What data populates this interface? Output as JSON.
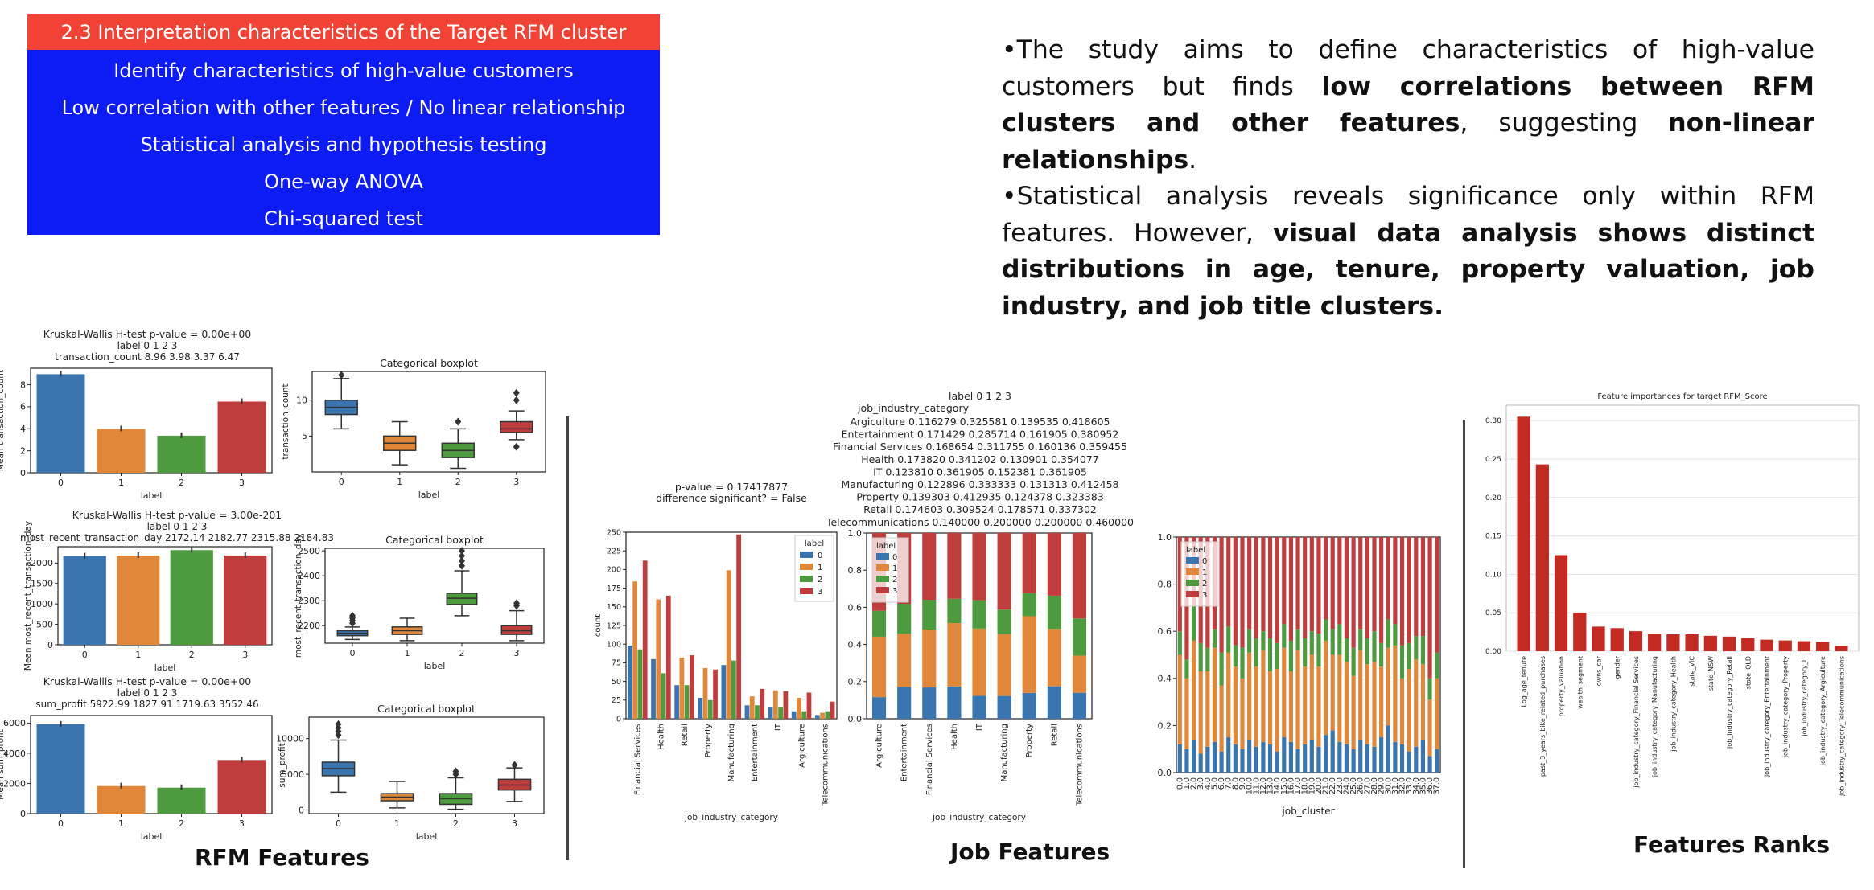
{
  "menu": {
    "items": [
      {
        "label": "2.3 Interpretation characteristics of the Target RFM cluster",
        "active": true
      },
      {
        "label": "Identify characteristics of high-value customers",
        "active": false
      },
      {
        "label": "Low correlation with other features / No linear relationship",
        "active": false
      },
      {
        "label": "Statistical analysis and hypothesis testing",
        "active": false
      },
      {
        "label": "One-way ANOVA",
        "active": false
      },
      {
        "label": "Chi-squared test",
        "active": false
      }
    ]
  },
  "summary": {
    "p1_a": "•The study aims to define characteristics of high-value customers but finds ",
    "p1_b": "low correlations between RFM clusters and other features",
    "p1_c": ", suggesting ",
    "p1_d": "non-linear relationships",
    "p1_e": ".",
    "p2_a": "•Statistical analysis reveals significance only within RFM features. However, ",
    "p2_b": "visual data analysis shows distinct distributions in age, tenure, property valuation, job industry, and job title clusters."
  },
  "captions": {
    "rfm": "RFM Features",
    "job": "Job Features",
    "ranks": "Features Ranks"
  },
  "colors": {
    "blue": "#3a75af",
    "orange": "#e1873a",
    "green": "#4e9a3e",
    "red": "#c03d3e",
    "feature_bar": "#c32a22",
    "menu_blue": "#0d1cf5",
    "menu_red": "#f24236"
  },
  "chart_data": [
    {
      "id": "tc",
      "type": "bar",
      "test_title": "Kruskal-Wallis H-test p-value = 0.00e+00",
      "table_header": "label           0      1      2      3",
      "table_row": "transaction_count  8.96  3.98  3.37  6.47",
      "categories": [
        "0",
        "1",
        "2",
        "3"
      ],
      "values": [
        8.96,
        3.98,
        3.37,
        6.47
      ],
      "xlabel": "label",
      "ylabel": "Mean transaction_count",
      "ylim": [
        0,
        9.5
      ],
      "yticks": [
        "0",
        "2",
        "4",
        "6",
        "8"
      ]
    },
    {
      "id": "tc_box",
      "type": "box",
      "title": "Categorical boxplot",
      "categories": [
        "0",
        "1",
        "2",
        "3"
      ],
      "xlabel": "label",
      "ylabel": "transaction_count",
      "ylim": [
        0,
        14
      ],
      "yticks": [
        "5",
        "10"
      ],
      "boxes": [
        {
          "q1": 8,
          "med": 9,
          "q3": 10,
          "lo": 6,
          "hi": 13,
          "outliers": [
            13.5
          ]
        },
        {
          "q1": 3,
          "med": 4,
          "q3": 5,
          "lo": 1,
          "hi": 7,
          "outliers": []
        },
        {
          "q1": 2,
          "med": 3,
          "q3": 4,
          "lo": 0.5,
          "hi": 6,
          "outliers": [
            7
          ]
        },
        {
          "q1": 5.5,
          "med": 6,
          "q3": 7,
          "lo": 4.5,
          "hi": 8.5,
          "outliers": [
            10,
            11,
            3.5
          ]
        }
      ]
    },
    {
      "id": "mrt",
      "type": "bar",
      "test_title": "Kruskal-Wallis H-test p-value = 3.00e-201",
      "table_header": "label                      0        1        2        3",
      "table_row": "most_recent_transaction_day  2172.14  2182.77  2315.88  2184.83",
      "categories": [
        "0",
        "1",
        "2",
        "3"
      ],
      "values": [
        2172.14,
        2182.77,
        2315.88,
        2184.83
      ],
      "xlabel": "label",
      "ylabel": "Mean most_recent_transaction_day",
      "ylim": [
        0,
        2400
      ],
      "yticks": [
        "0",
        "500",
        "1000",
        "1500",
        "2000"
      ]
    },
    {
      "id": "mrt_box",
      "type": "box",
      "title": "Categorical boxplot",
      "categories": [
        "0",
        "1",
        "2",
        "3"
      ],
      "xlabel": "label",
      "ylabel": "most_recent_transaction_day",
      "ylim": [
        2130,
        2510
      ],
      "yticks": [
        "2200",
        "2300",
        "2400",
        "2500"
      ],
      "boxes": [
        {
          "q1": 2160,
          "med": 2170,
          "q3": 2180,
          "lo": 2145,
          "hi": 2195,
          "outliers": [
            2210,
            2220,
            2230,
            2240
          ]
        },
        {
          "q1": 2165,
          "med": 2180,
          "q3": 2195,
          "lo": 2140,
          "hi": 2230,
          "outliers": []
        },
        {
          "q1": 2285,
          "med": 2310,
          "q3": 2330,
          "lo": 2240,
          "hi": 2420,
          "outliers": [
            2440,
            2460,
            2480,
            2500
          ]
        },
        {
          "q1": 2165,
          "med": 2180,
          "q3": 2200,
          "lo": 2140,
          "hi": 2260,
          "outliers": [
            2280,
            2290
          ]
        }
      ]
    },
    {
      "id": "sp",
      "type": "bar",
      "test_title": "Kruskal-Wallis H-test p-value = 0.00e+00",
      "table_header": "label        0        1        2        3",
      "table_row": "sum_profit  5922.99  1827.91  1719.63  3552.46",
      "categories": [
        "0",
        "1",
        "2",
        "3"
      ],
      "values": [
        5922.99,
        1827.91,
        1719.63,
        3552.46
      ],
      "xlabel": "label",
      "ylabel": "Mean sum_profit",
      "ylim": [
        0,
        6500
      ],
      "yticks": [
        "0",
        "2000",
        "4000",
        "6000"
      ]
    },
    {
      "id": "sp_box",
      "type": "box",
      "title": "Categorical boxplot",
      "categories": [
        "0",
        "1",
        "2",
        "3"
      ],
      "xlabel": "label",
      "ylabel": "sum_profit",
      "ylim": [
        -500,
        13000
      ],
      "yticks": [
        "0",
        "5000",
        "10000"
      ],
      "boxes": [
        {
          "q1": 4800,
          "med": 5800,
          "q3": 6700,
          "lo": 2500,
          "hi": 9800,
          "outliers": [
            10500,
            11000,
            11500,
            12000
          ]
        },
        {
          "q1": 1300,
          "med": 1800,
          "q3": 2300,
          "lo": 300,
          "hi": 4000,
          "outliers": []
        },
        {
          "q1": 800,
          "med": 1600,
          "q3": 2300,
          "lo": 100,
          "hi": 4500,
          "outliers": [
            5000,
            5400
          ]
        },
        {
          "q1": 2800,
          "med": 3500,
          "q3": 4300,
          "lo": 1200,
          "hi": 5900,
          "outliers": [
            6300
          ]
        }
      ]
    },
    {
      "id": "job_count",
      "type": "bar",
      "title_line1": "p-value = 0.17417877",
      "title_line2": "difference significant? = False",
      "categories": [
        "Financial Services",
        "Health",
        "Retail",
        "Property",
        "Manufacturing",
        "Entertainment",
        "IT",
        "Argiculture",
        "Telecommunications"
      ],
      "series": [
        {
          "name": "0",
          "values": [
            98,
            80,
            45,
            28,
            72,
            18,
            15,
            10,
            5
          ]
        },
        {
          "name": "1",
          "values": [
            184,
            160,
            82,
            68,
            199,
            30,
            38,
            28,
            8
          ]
        },
        {
          "name": "2",
          "values": [
            93,
            61,
            45,
            25,
            78,
            18,
            15,
            10,
            10
          ]
        },
        {
          "name": "3",
          "values": [
            212,
            165,
            85,
            66,
            247,
            40,
            37,
            35,
            23
          ]
        }
      ],
      "legend_title": "label",
      "xlabel": "job_industry_category",
      "ylabel": "count",
      "ylim": [
        0,
        250
      ],
      "yticks": [
        "0",
        "25",
        "50",
        "75",
        "100",
        "125",
        "150",
        "175",
        "200",
        "225",
        "250"
      ]
    },
    {
      "id": "job_table",
      "type": "table",
      "header": "label                       0          1          2          3",
      "subheader": "job_industry_category",
      "rows": [
        "Argiculture          0.116279  0.325581  0.139535  0.418605",
        "Entertainment        0.171429  0.285714  0.161905  0.380952",
        "Financial Services   0.168654  0.311755  0.160136  0.359455",
        "Health               0.173820  0.341202  0.130901  0.354077",
        "IT                   0.123810  0.361905  0.152381  0.361905",
        "Manufacturing        0.122896  0.333333  0.131313  0.412458",
        "Property             0.139303  0.412935  0.124378  0.323383",
        "Retail               0.174603  0.309524  0.178571  0.337302",
        "Telecommunications   0.140000  0.200000  0.200000  0.460000"
      ]
    },
    {
      "id": "job_stacked",
      "type": "bar",
      "categories": [
        "Argiculture",
        "Entertainment",
        "Financial Services",
        "Health",
        "IT",
        "Manufacturing",
        "Property",
        "Retail",
        "Telecommunications"
      ],
      "series": [
        {
          "name": "0",
          "values": [
            0.116279,
            0.171429,
            0.168654,
            0.17382,
            0.12381,
            0.122896,
            0.139303,
            0.174603,
            0.14
          ]
        },
        {
          "name": "1",
          "values": [
            0.325581,
            0.285714,
            0.311755,
            0.341202,
            0.361905,
            0.333333,
            0.412935,
            0.309524,
            0.2
          ]
        },
        {
          "name": "2",
          "values": [
            0.139535,
            0.161905,
            0.160136,
            0.130901,
            0.152381,
            0.131313,
            0.124378,
            0.178571,
            0.2
          ]
        },
        {
          "name": "3",
          "values": [
            0.418605,
            0.380952,
            0.359455,
            0.354077,
            0.361905,
            0.412458,
            0.323383,
            0.337302,
            0.46
          ]
        }
      ],
      "legend_title": "label",
      "xlabel": "job_industry_category",
      "ylim": [
        0,
        1.0
      ],
      "yticks": [
        "0.0",
        "0.2",
        "0.4",
        "0.6",
        "0.8",
        "1.0"
      ]
    },
    {
      "id": "job_cluster",
      "type": "bar",
      "categories": [
        "0.0",
        "1.0",
        "2.0",
        "3.0",
        "4.0",
        "5.0",
        "6.0",
        "7.0",
        "8.0",
        "9.0",
        "10.0",
        "11.0",
        "12.0",
        "13.0",
        "14.0",
        "15.0",
        "16.0",
        "17.0",
        "18.0",
        "19.0",
        "20.0",
        "21.0",
        "22.0",
        "23.0",
        "24.0",
        "25.0",
        "26.0",
        "27.0",
        "28.0",
        "29.0",
        "30.0",
        "31.0",
        "32.0",
        "33.0",
        "34.0",
        "35.0",
        "36.0",
        "37.0"
      ],
      "series": [
        {
          "name": "0",
          "values": [
            0.12,
            0.1,
            0.14,
            0.08,
            0.11,
            0.13,
            0.09,
            0.15,
            0.12,
            0.1,
            0.14,
            0.11,
            0.13,
            0.12,
            0.09,
            0.15,
            0.13,
            0.1,
            0.12,
            0.14,
            0.11,
            0.16,
            0.18,
            0.13,
            0.12,
            0.1,
            0.14,
            0.12,
            0.11,
            0.15,
            0.2,
            0.13,
            0.12,
            0.09,
            0.11,
            0.14,
            0.07,
            0.1
          ]
        },
        {
          "name": "1",
          "values": [
            0.38,
            0.3,
            0.42,
            0.35,
            0.32,
            0.4,
            0.28,
            0.36,
            0.33,
            0.3,
            0.37,
            0.34,
            0.39,
            0.31,
            0.35,
            0.38,
            0.3,
            0.42,
            0.33,
            0.36,
            0.34,
            0.4,
            0.32,
            0.37,
            0.35,
            0.31,
            0.38,
            0.34,
            0.36,
            0.3,
            0.33,
            0.41,
            0.28,
            0.35,
            0.37,
            0.32,
            0.24,
            0.3
          ]
        },
        {
          "name": "2",
          "values": [
            0.1,
            0.08,
            0.15,
            0.12,
            0.1,
            0.08,
            0.14,
            0.11,
            0.09,
            0.13,
            0.1,
            0.12,
            0.08,
            0.14,
            0.11,
            0.1,
            0.13,
            0.09,
            0.12,
            0.1,
            0.14,
            0.09,
            0.11,
            0.13,
            0.1,
            0.12,
            0.09,
            0.11,
            0.13,
            0.1,
            0.12,
            0.09,
            0.14,
            0.11,
            0.1,
            0.12,
            0.09,
            0.11
          ]
        },
        {
          "name": "3",
          "values": [
            0.4,
            0.52,
            0.29,
            0.45,
            0.47,
            0.39,
            0.49,
            0.38,
            0.46,
            0.47,
            0.39,
            0.43,
            0.4,
            0.43,
            0.45,
            0.37,
            0.44,
            0.39,
            0.43,
            0.4,
            0.41,
            0.35,
            0.39,
            0.37,
            0.43,
            0.47,
            0.39,
            0.43,
            0.4,
            0.45,
            0.35,
            0.37,
            0.46,
            0.45,
            0.42,
            0.42,
            0.6,
            0.49
          ]
        }
      ],
      "legend_title": "label",
      "xlabel": "job_cluster",
      "ylim": [
        0,
        1.0
      ],
      "yticks": [
        "0.0",
        "0.2",
        "0.4",
        "0.6",
        "0.8",
        "1.0"
      ]
    },
    {
      "id": "importances",
      "type": "bar",
      "title": "Feature importances for target RFM_Score",
      "categories": [
        "Log_age_tenure",
        "past_3_years_bike_related_purchases",
        "property_valuation",
        "wealth_segment",
        "owns_car",
        "gender",
        "job_industry_category_Financial Services",
        "job_industry_category_Manufacturing",
        "job_industry_category_Health",
        "state_VIC",
        "state_NSW",
        "job_industry_category_Retail",
        "state_QLD",
        "job_industry_category_Entertainment",
        "job_industry_category_Property",
        "job_industry_category_IT",
        "job_industry_category_Argiculture",
        "job_industry_category_Telecommunications"
      ],
      "values": [
        0.305,
        0.243,
        0.125,
        0.05,
        0.032,
        0.03,
        0.026,
        0.023,
        0.022,
        0.022,
        0.02,
        0.019,
        0.017,
        0.015,
        0.014,
        0.013,
        0.012,
        0.007
      ],
      "ylim": [
        0,
        0.32
      ],
      "yticks": [
        "0.00",
        "0.05",
        "0.10",
        "0.15",
        "0.20",
        "0.25",
        "0.30"
      ]
    }
  ]
}
